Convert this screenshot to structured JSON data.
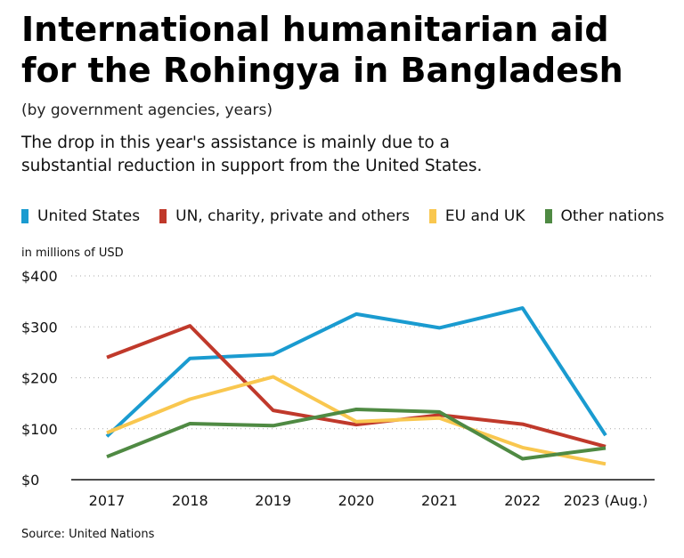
{
  "title_lines": [
    "International humanitarian aid",
    "for the Rohingya in Bangladesh"
  ],
  "subtitle": "(by government agencies, years)",
  "deck_lines": [
    "The drop in this year's assistance is mainly due to a",
    "substantial reduction in support from the United States."
  ],
  "unit_label": "in millions of USD",
  "source": "Source: United Nations",
  "chart_data": {
    "type": "line",
    "x": [
      "2017",
      "2018",
      "2019",
      "2020",
      "2021",
      "2022",
      "2023 (Aug.)"
    ],
    "ylim": [
      0,
      400
    ],
    "yticks": [
      0,
      100,
      200,
      300,
      400
    ],
    "ytick_labels": [
      "$0",
      "$100",
      "$200",
      "$300",
      "$400"
    ],
    "grid": true,
    "legend_position": "top",
    "series": [
      {
        "name": "United States",
        "color": "#1a9bd0",
        "values": [
          85,
          238,
          246,
          325,
          298,
          337,
          87
        ]
      },
      {
        "name": "UN, charity, private and others",
        "color": "#c0392b",
        "values": [
          240,
          302,
          136,
          108,
          127,
          109,
          65
        ]
      },
      {
        "name": "EU and UK",
        "color": "#f9c74f",
        "values": [
          92,
          158,
          202,
          114,
          121,
          63,
          31
        ]
      },
      {
        "name": "Other nations",
        "color": "#4f8a43",
        "values": [
          45,
          110,
          106,
          138,
          133,
          41,
          62
        ]
      }
    ]
  }
}
